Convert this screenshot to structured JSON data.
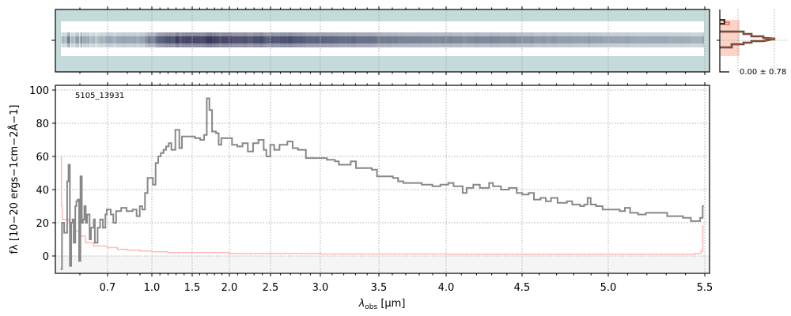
{
  "chart_data": [
    {
      "type": "heatmap",
      "description_panel": "2D spectrum",
      "colors": {
        "background": "#c5dada",
        "band": "#ffffff",
        "trace_low": "#a9c4c6",
        "trace_high": "#36355a"
      }
    },
    {
      "type": "line",
      "step": true,
      "annotation": "5105_13931",
      "xlabel": "λobs [μm]",
      "xlabel_main": "λ",
      "xlabel_sub": "obs",
      "xlabel_unit": " [μm]",
      "ylabel": "fλ [10−20 ergs−1cm−2Å−1]",
      "xlim": [
        0.53,
        5.52
      ],
      "ylim": [
        -10,
        102
      ],
      "grid": true,
      "xticks": [
        0.7,
        1.0,
        1.5,
        2.0,
        2.5,
        3.0,
        3.5,
        4.0,
        4.5,
        5.0,
        5.5
      ],
      "xtick_labels": [
        "0.7",
        "1.0",
        "1.5",
        "2.0",
        "2.5",
        "3.0",
        "3.5",
        "4.0",
        "4.5",
        "5.0",
        "5.5"
      ],
      "yticks": [
        0,
        20,
        40,
        60,
        80,
        100
      ],
      "ytick_labels": [
        "0",
        "20",
        "40",
        "60",
        "80",
        "100"
      ],
      "colors": {
        "flux": "#888888",
        "error": "#ffb8b8",
        "negative_shade": "#f5f5f5"
      },
      "series": [
        {
          "role": "flux",
          "x": [
            0.529,
            0.534,
            0.542,
            0.553,
            0.558,
            0.563,
            0.568,
            0.573,
            0.577,
            0.583,
            0.587,
            0.592,
            0.597,
            0.602,
            0.607,
            0.611,
            0.616,
            0.621,
            0.626,
            0.635,
            0.64,
            0.65,
            0.654,
            0.664,
            0.673,
            0.683,
            0.692,
            0.697,
            0.716,
            0.729,
            0.743,
            0.769,
            0.796,
            0.842,
            0.873,
            0.898,
            0.919,
            0.942,
            0.964,
            0.987,
            1.013,
            1.046,
            1.078,
            1.111,
            1.144,
            1.176,
            1.209,
            1.242,
            1.291,
            1.34,
            1.373,
            1.405,
            1.471,
            1.503,
            1.537,
            1.607,
            1.66,
            1.696,
            1.731,
            1.767,
            1.82,
            1.856,
            1.891,
            1.963,
            2.032,
            2.096,
            2.16,
            2.224,
            2.288,
            2.353,
            2.417,
            2.449,
            2.497,
            2.537,
            2.59,
            2.669,
            2.722,
            2.775,
            2.828,
            2.855,
            2.934,
            3.002,
            3.056,
            3.124,
            3.158,
            3.214,
            3.259,
            3.304,
            3.372,
            3.439,
            3.484,
            3.545,
            3.604,
            3.643,
            3.682,
            3.741,
            3.819,
            3.898,
            3.957,
            4.014,
            4.049,
            4.109,
            4.135,
            4.179,
            4.222,
            4.283,
            4.309,
            4.361,
            4.413,
            4.465,
            4.501,
            4.538,
            4.569,
            4.607,
            4.638,
            4.668,
            4.706,
            4.76,
            4.791,
            4.837,
            4.86,
            4.88,
            4.898,
            4.929,
            4.967,
            5.001,
            5.031,
            5.059,
            5.086,
            5.113,
            5.154,
            5.195,
            5.223,
            5.264,
            5.305,
            5.346,
            5.387,
            5.428,
            5.455,
            5.476,
            5.489
          ],
          "y": [
            -8,
            20,
            14,
            45,
            55,
            -6,
            20,
            22,
            8,
            30,
            33,
            34,
            -3,
            48,
            20,
            22,
            30,
            20,
            25,
            10,
            17,
            22,
            8,
            17,
            22,
            17,
            25,
            28,
            25,
            20,
            27,
            29,
            27,
            28,
            24,
            30,
            28,
            38,
            47,
            47,
            43,
            56,
            60,
            62,
            64,
            66,
            68,
            64,
            76,
            65,
            72,
            72,
            72,
            72,
            71,
            70,
            73,
            95,
            88,
            75,
            74,
            67,
            71,
            71,
            67,
            66,
            68,
            63,
            68,
            70,
            64,
            60,
            67,
            64,
            67,
            69,
            65,
            64,
            64,
            59,
            59,
            59,
            58,
            57,
            55,
            55,
            57,
            53,
            53,
            52,
            48,
            48,
            47,
            45,
            44,
            44,
            43,
            42,
            43,
            44,
            42,
            38,
            41,
            43,
            41,
            44,
            42,
            40,
            41,
            38,
            37,
            38,
            34,
            35,
            33,
            35,
            32,
            33,
            31,
            30,
            31,
            35,
            31,
            30,
            28,
            28,
            28,
            27,
            29,
            26,
            25,
            26,
            26,
            26,
            24,
            24,
            23,
            21,
            21,
            23,
            30
          ]
        },
        {
          "role": "error",
          "x": [
            0.529,
            0.532,
            0.535,
            0.56,
            0.58,
            0.6,
            0.62,
            0.65,
            0.7,
            0.75,
            0.8,
            0.9,
            1.0,
            1.2,
            2.0,
            3.0,
            4.0,
            5.0,
            5.45,
            5.48,
            5.49
          ],
          "y": [
            60,
            30,
            22,
            20,
            15,
            12,
            8,
            6,
            5,
            4,
            3.5,
            3,
            2.5,
            2,
            1.5,
            1.2,
            1,
            1,
            1.5,
            3,
            18
          ]
        }
      ]
    },
    {
      "type": "line",
      "description_panel": "spatial profile",
      "annotation": "0.00 ± 0.78",
      "colors": {
        "profile": "#333333",
        "model": "#d2603a",
        "fill": "#fcd3c6"
      }
    }
  ]
}
